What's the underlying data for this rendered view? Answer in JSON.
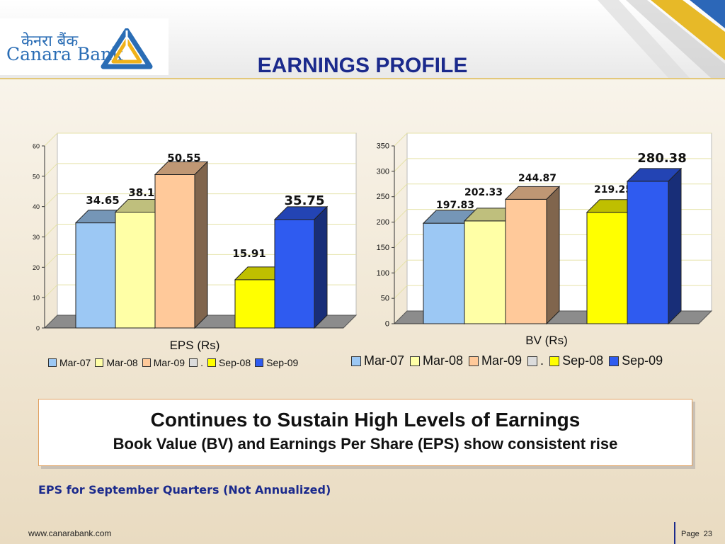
{
  "header": {
    "title": "EARNINGS PROFILE",
    "logo_hindi": "केनरा बैंक",
    "logo_english": "Canara Bank"
  },
  "colors": {
    "title": "#1b2a8c",
    "series": [
      "#9cc8f4",
      "#ffffa6",
      "#ffc99a",
      "#dcdcdc",
      "#ffff00",
      "#2f5bf0"
    ]
  },
  "chart_data": [
    {
      "type": "bar",
      "title": "",
      "xlabel": "EPS (Rs)",
      "ylim": [
        0,
        60
      ],
      "yticks": [
        "0",
        "10",
        "20",
        "30",
        "40",
        "50",
        "60"
      ],
      "series": [
        {
          "name": "Mar-07",
          "values": [
            34.65
          ]
        },
        {
          "name": "Mar-08",
          "values": [
            38.17
          ]
        },
        {
          "name": "Mar-09",
          "values": [
            50.55
          ]
        },
        {
          "name": ".",
          "values": [
            null
          ]
        },
        {
          "name": "Sep-08",
          "values": [
            15.91
          ]
        },
        {
          "name": "Sep-09",
          "values": [
            35.75
          ]
        }
      ],
      "data_labels": [
        "34.65",
        "38.17",
        "50.55",
        "",
        "15.91",
        "35.75"
      ],
      "legend_labels": [
        "Mar-07",
        "Mar-08",
        "Mar-09",
        ".",
        "Sep-08",
        "Sep-09"
      ],
      "legend_position": "bottom",
      "grid": true
    },
    {
      "type": "bar",
      "title": "",
      "xlabel": "BV (Rs)",
      "ylim": [
        0,
        350
      ],
      "yticks": [
        "0",
        "50",
        "100",
        "150",
        "200",
        "250",
        "300",
        "350"
      ],
      "series": [
        {
          "name": "Mar-07",
          "values": [
            197.83
          ]
        },
        {
          "name": "Mar-08",
          "values": [
            202.33
          ]
        },
        {
          "name": "Mar-09",
          "values": [
            244.87
          ]
        },
        {
          "name": ".",
          "values": [
            null
          ]
        },
        {
          "name": "Sep-08",
          "values": [
            219.25
          ]
        },
        {
          "name": "Sep-09",
          "values": [
            280.38
          ]
        }
      ],
      "data_labels": [
        "197.83",
        "202.33",
        "244.87",
        "",
        "219.25",
        "280.38"
      ],
      "legend_labels": [
        "Mar-07",
        "Mar-08",
        "Mar-09",
        ".",
        "Sep-08",
        "Sep-09"
      ],
      "legend_position": "bottom",
      "grid": true
    }
  ],
  "message": {
    "headline": "Continues to Sustain High Levels of Earnings",
    "subline": "Book Value (BV) and Earnings Per Share (EPS) show consistent rise"
  },
  "note": "EPS for September Quarters (Not Annualized)",
  "footer": {
    "url": "www.canarabank.com",
    "page_label": "Page",
    "page_number": "23"
  }
}
